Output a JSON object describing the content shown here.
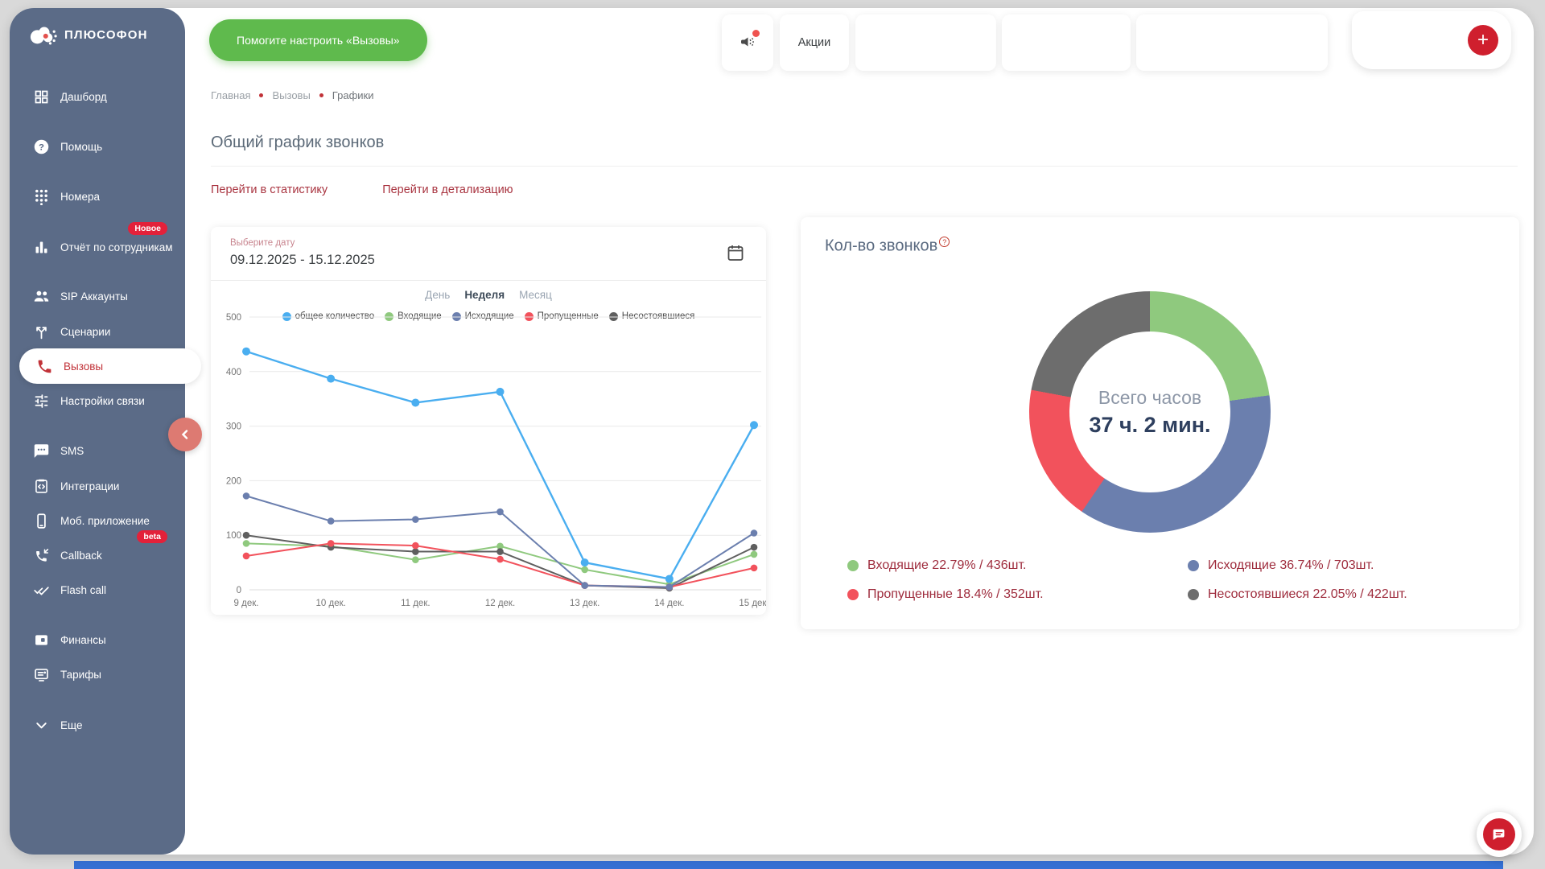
{
  "app": {
    "logo_text": "ПЛЮСОФОН"
  },
  "topbar": {
    "setup_button_label": "Помогите настроить «Вызовы»",
    "promo_tab_label": "Акции",
    "add_button_label": "+"
  },
  "sidebar": {
    "items": [
      {
        "label": "Дашборд",
        "icon": "dashboard"
      },
      {
        "label": "Помощь",
        "icon": "help"
      },
      {
        "label": "Номера",
        "icon": "dialpad"
      },
      {
        "label": "Отчёт по сотрудникам",
        "icon": "report",
        "badge": "Новое"
      },
      {
        "label": "SIP Аккаунты",
        "icon": "sip-accounts"
      },
      {
        "label": "Сценарии",
        "icon": "scenario"
      },
      {
        "label": "Вызовы",
        "icon": "phone",
        "active": true
      },
      {
        "label": "Настройки связи",
        "icon": "tune"
      },
      {
        "label": "SMS",
        "icon": "sms"
      },
      {
        "label": "Интеграции",
        "icon": "integrations"
      },
      {
        "label": "Моб. приложение",
        "icon": "mobile"
      },
      {
        "label": "Callback",
        "icon": "callback",
        "badge": "beta"
      },
      {
        "label": "Flash call",
        "icon": "flash-call"
      },
      {
        "label": "Финансы",
        "icon": "finance"
      },
      {
        "label": "Тарифы",
        "icon": "tariffs"
      },
      {
        "label": "Еще",
        "icon": "chevron-down"
      }
    ]
  },
  "breadcrumb": [
    "Главная",
    "Вызовы",
    "Графики"
  ],
  "page": {
    "title": "Общий график звонков",
    "links": [
      "Перейти в статистику",
      "Перейти в детализацию"
    ]
  },
  "filter": {
    "date_label": "Выберите дату",
    "date_value": "09.12.2025 - 15.12.2025",
    "period_tabs": [
      "День",
      "Неделя",
      "Месяц"
    ],
    "active_tab": "Неделя"
  },
  "chart_data": [
    {
      "type": "line",
      "title": "Общий график звонков",
      "categories": [
        "9 дек.",
        "10 дек.",
        "11 дек.",
        "12 дек.",
        "13 дек.",
        "14 дек.",
        "15 дек."
      ],
      "series": [
        {
          "name": "общее количество",
          "color": "#4aaef0",
          "values": [
            437,
            387,
            343,
            363,
            50,
            20,
            302
          ]
        },
        {
          "name": "Входящие",
          "color": "#8fc97e",
          "values": [
            85,
            80,
            55,
            80,
            37,
            10,
            65
          ]
        },
        {
          "name": "Исходящие",
          "color": "#6b7fae",
          "values": [
            172,
            126,
            129,
            143,
            8,
            5,
            104
          ]
        },
        {
          "name": "Пропущенные",
          "color": "#f2525c",
          "values": [
            62,
            85,
            81,
            56,
            8,
            5,
            40
          ]
        },
        {
          "name": "Несостоявшиеся",
          "color": "#5f5f5f",
          "values": [
            100,
            78,
            70,
            70,
            8,
            3,
            78
          ]
        }
      ],
      "ylim": [
        0,
        500
      ],
      "yticks": [
        0,
        100,
        200,
        300,
        400,
        500
      ],
      "grid": true,
      "legend_position": "top"
    },
    {
      "type": "pie",
      "title": "Кол-во звонков",
      "center_label": "Всего часов",
      "center_value": "37 ч. 2 мин.",
      "slices": [
        {
          "name": "Входящие",
          "pct": 22.79,
          "count": 436,
          "color": "#8fc97e",
          "label": "Входящие 22.79% / 436шт."
        },
        {
          "name": "Исходящие",
          "pct": 36.74,
          "count": 703,
          "color": "#6b7fae",
          "label": "Исходящие 36.74% / 703шт."
        },
        {
          "name": "Пропущенные",
          "pct": 18.4,
          "count": 352,
          "color": "#f2525c",
          "label": "Пропущенные 18.4% / 352шт."
        },
        {
          "name": "Несостоявшиеся",
          "pct": 22.05,
          "count": 422,
          "color": "#6d6d6d",
          "label": "Несостоявшиеся 22.05% / 422шт."
        }
      ]
    }
  ]
}
